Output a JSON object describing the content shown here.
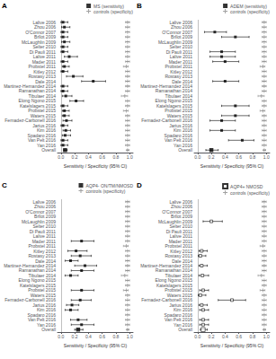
{
  "chart_data": [
    {
      "type": "forest",
      "title": "A",
      "categories": [
        "Lalive 2006",
        "Zhou 2006",
        "O'Connor 2007",
        "Brllot 2009",
        "McLaughlin 2009",
        "Selter 2010",
        "Di Pauli 2011",
        "Lalive 2011",
        "Mader 2011",
        "Probstel 2011",
        "Kitley 2012",
        "Rostasy 2013",
        "Dale 2014",
        "Martinez-Hernandez 2014",
        "Ramanathan 2014",
        "Tibulaer 2014",
        "Elong Ngono 2015",
        "Katelslagers 2015",
        "Probstel 2015",
        "Waters 2015",
        "Fernadez-Carbonell 2016",
        "Jarius 2016",
        "Kim 2016",
        "Spadaro 2016",
        "Van Pelt 2016",
        "Yan 2016",
        "Overall"
      ],
      "series": [
        {
          "name": "MS (sensitivity)",
          "color": "#000000",
          "marker": "square",
          "values": [
            0.03,
            0.05,
            0.03,
            0.03,
            0.05,
            0.03,
            0.03,
            0.12,
            0.03,
            0.05,
            0.03,
            0.18,
            0.47,
            0.03,
            0.03,
            0.07,
            0.22,
            0.03,
            0.05,
            0.05,
            0.08,
            0.03,
            0.07,
            0.06,
            0.03,
            0.03,
            0.06
          ],
          "error_low": [
            0.0,
            0.01,
            0.0,
            0.0,
            0.01,
            0.0,
            0.0,
            0.05,
            0.0,
            0.02,
            0.0,
            0.08,
            0.3,
            0.0,
            0.0,
            0.02,
            0.13,
            0.0,
            0.02,
            0.02,
            0.03,
            0.0,
            0.03,
            0.02,
            0.0,
            0.0,
            0.04
          ],
          "error_high": [
            0.1,
            0.13,
            0.1,
            0.1,
            0.13,
            0.1,
            0.1,
            0.24,
            0.1,
            0.12,
            0.1,
            0.32,
            0.65,
            0.1,
            0.1,
            0.16,
            0.33,
            0.1,
            0.12,
            0.12,
            0.16,
            0.1,
            0.14,
            0.14,
            0.1,
            0.1,
            0.09
          ]
        },
        {
          "name": "controls (specificity)",
          "color": "#888888",
          "marker": "plus",
          "values": [
            0.97,
            0.97,
            0.97,
            0.97,
            0.97,
            0.97,
            0.97,
            0.97,
            0.97,
            0.95,
            0.97,
            0.97,
            0.97,
            0.97,
            0.97,
            0.93,
            0.97,
            0.97,
            0.95,
            0.97,
            0.97,
            0.97,
            0.97,
            0.97,
            0.97,
            0.97,
            0.97
          ],
          "error_low": [
            0.94,
            0.94,
            0.94,
            0.94,
            0.94,
            0.94,
            0.94,
            0.94,
            0.94,
            0.91,
            0.94,
            0.94,
            0.94,
            0.94,
            0.94,
            0.88,
            0.94,
            0.94,
            0.91,
            0.94,
            0.94,
            0.94,
            0.94,
            0.94,
            0.94,
            0.94,
            0.96
          ],
          "error_high": [
            1.0,
            1.0,
            1.0,
            1.0,
            1.0,
            1.0,
            1.0,
            1.0,
            1.0,
            0.98,
            1.0,
            1.0,
            1.0,
            1.0,
            1.0,
            0.97,
            1.0,
            1.0,
            0.98,
            1.0,
            1.0,
            1.0,
            1.0,
            1.0,
            1.0,
            1.0,
            0.99
          ]
        }
      ],
      "xlabel": "Sensitivity / Specificity (95% CI)",
      "xlim": [
        -0.05,
        1.05
      ],
      "xticks": [
        {
          "value": 0,
          "label": "0.0"
        },
        0.2,
        0.4,
        0.6,
        0.8,
        {
          "value": 1,
          "label": "1.0"
        }
      ],
      "reference_lines": [
        {
          "x": 0,
          "line_style": "dotted"
        }
      ],
      "legend": "upper right",
      "grid": false
    },
    {
      "type": "forest",
      "title": "B",
      "categories": [
        "Lalive 2006",
        "Zhou 2006",
        "O'Connor 2007",
        "Brllot 2009",
        "McLaughlin 2009",
        "Selter 2010",
        "Di Pauli 2011",
        "Lalive 2011",
        "Mader 2011",
        "Probstel 2011",
        "Kitley 2012",
        "Rostasy 2013",
        "Dale 2014",
        "Martinez-Hernandez 2014",
        "Ramanathan 2014",
        "Tibulaer 2014",
        "Elong Ngono 2015",
        "Katelslagers 2015",
        "Probstel 2015",
        "Waters 2015",
        "Fernadez-Carbonell 2016",
        "Jarius 2016",
        "Kim 2016",
        "Spadaro 2016",
        "Van Pelt 2016",
        "Yan 2016",
        "Overall"
      ],
      "series": [
        {
          "name": "ADEM (sensitivity)",
          "color": "#000000",
          "marker": "square",
          "values": [
            null,
            null,
            0.25,
            0.55,
            null,
            null,
            0.35,
            0.35,
            0.4,
            null,
            null,
            null,
            0.4,
            null,
            null,
            null,
            null,
            0.55,
            null,
            0.55,
            0.35,
            null,
            0.35,
            null,
            0.65,
            null,
            0.2
          ],
          "error_low": [
            null,
            null,
            0.1,
            0.35,
            null,
            null,
            0.18,
            0.18,
            0.22,
            null,
            null,
            null,
            0.22,
            null,
            null,
            null,
            null,
            0.35,
            null,
            0.35,
            0.18,
            null,
            0.18,
            null,
            0.45,
            null,
            0.12
          ],
          "error_high": [
            null,
            null,
            0.42,
            0.75,
            null,
            null,
            0.55,
            0.55,
            0.6,
            null,
            null,
            null,
            0.6,
            null,
            null,
            null,
            null,
            0.75,
            null,
            0.75,
            0.55,
            null,
            0.55,
            null,
            0.82,
            null,
            0.3
          ]
        },
        {
          "name": "controls (specificity)",
          "color": "#888888",
          "marker": "plus",
          "values": [
            0.97,
            0.97,
            0.97,
            0.97,
            0.97,
            0.97,
            0.97,
            0.97,
            0.97,
            0.95,
            0.97,
            0.97,
            0.97,
            0.97,
            0.97,
            0.93,
            0.97,
            0.97,
            0.95,
            0.97,
            0.97,
            0.97,
            0.97,
            0.97,
            0.97,
            0.97,
            0.97
          ],
          "error_low": [
            0.94,
            0.94,
            0.94,
            0.94,
            0.94,
            0.94,
            0.94,
            0.94,
            0.94,
            0.91,
            0.94,
            0.94,
            0.94,
            0.94,
            0.94,
            0.88,
            0.94,
            0.94,
            0.91,
            0.94,
            0.94,
            0.94,
            0.94,
            0.94,
            0.94,
            0.94,
            0.96
          ],
          "error_high": [
            1.0,
            1.0,
            1.0,
            1.0,
            1.0,
            1.0,
            1.0,
            1.0,
            1.0,
            0.98,
            1.0,
            1.0,
            1.0,
            1.0,
            1.0,
            0.97,
            1.0,
            1.0,
            0.98,
            1.0,
            1.0,
            1.0,
            1.0,
            1.0,
            1.0,
            1.0,
            0.99
          ]
        }
      ],
      "xlabel": "Sensitivity / Specificity (95% CI)",
      "xlim": [
        -0.05,
        1.05
      ],
      "xticks": [
        {
          "value": 0,
          "label": "0.0"
        },
        0.2,
        0.4,
        0.6,
        0.8,
        {
          "value": 1,
          "label": "1.0"
        }
      ],
      "reference_lines": [
        {
          "x": 0,
          "line_style": "dotted"
        }
      ],
      "legend": "upper right",
      "grid": false
    },
    {
      "type": "forest",
      "title": "C",
      "categories": [
        "Lalive 2006",
        "Zhou 2006",
        "O'Connor 2007",
        "Brllot 2009",
        "McLaughlin 2009",
        "Selter 2010",
        "Di Pauli 2011",
        "Lalive 2011",
        "Mader 2011",
        "Probstel 2011",
        "Kitley 2012",
        "Rostasy 2013",
        "Dale 2014",
        "Martinez-Hernandez 2014",
        "Ramanathan 2014",
        "Tibulaer 2014",
        "Elong Ngono 2015",
        "Katelslagers 2015",
        "Probstel 2015",
        "Waters 2015",
        "Fernadez-Carbonell 2016",
        "Jarius 2016",
        "Kim 2016",
        "Spadaro 2016",
        "Van Pelt 2016",
        "Yan 2016",
        "Overall"
      ],
      "series": [
        {
          "name": "AQP4- ON/TM/NMOSD",
          "color": "#000000",
          "marker": "square",
          "values": [
            null,
            null,
            null,
            null,
            null,
            null,
            null,
            null,
            0.3,
            null,
            0.22,
            0.28,
            0.14,
            0.35,
            0.3,
            0.14,
            null,
            null,
            0.3,
            null,
            0.28,
            0.16,
            0.14,
            null,
            0.25,
            0.3,
            0.25
          ],
          "error_low": [
            null,
            null,
            null,
            null,
            null,
            null,
            null,
            null,
            0.15,
            null,
            0.1,
            0.15,
            0.06,
            0.2,
            0.15,
            0.06,
            null,
            null,
            0.15,
            null,
            0.15,
            0.08,
            0.06,
            null,
            0.14,
            0.15,
            0.2
          ],
          "error_high": [
            null,
            null,
            null,
            null,
            null,
            null,
            null,
            null,
            0.48,
            null,
            0.38,
            0.44,
            0.25,
            0.52,
            0.48,
            0.25,
            null,
            null,
            0.48,
            null,
            0.44,
            0.26,
            0.25,
            null,
            0.38,
            0.48,
            0.32
          ]
        },
        {
          "name": "controls (specificity)",
          "color": "#888888",
          "marker": "plus",
          "values": [
            0.97,
            0.97,
            0.97,
            0.97,
            0.97,
            0.97,
            0.97,
            0.97,
            0.97,
            0.95,
            0.97,
            0.97,
            0.97,
            0.97,
            0.97,
            0.93,
            0.97,
            0.97,
            0.95,
            0.97,
            0.97,
            0.97,
            0.97,
            0.97,
            0.97,
            0.97,
            0.97
          ],
          "error_low": [
            0.94,
            0.94,
            0.94,
            0.94,
            0.94,
            0.94,
            0.94,
            0.94,
            0.94,
            0.91,
            0.94,
            0.94,
            0.94,
            0.94,
            0.94,
            0.88,
            0.94,
            0.94,
            0.91,
            0.94,
            0.94,
            0.94,
            0.94,
            0.94,
            0.94,
            0.94,
            0.96
          ],
          "error_high": [
            1.0,
            1.0,
            1.0,
            1.0,
            1.0,
            1.0,
            1.0,
            1.0,
            1.0,
            0.98,
            1.0,
            1.0,
            1.0,
            1.0,
            1.0,
            0.97,
            1.0,
            1.0,
            0.98,
            1.0,
            1.0,
            1.0,
            1.0,
            1.0,
            1.0,
            1.0,
            0.99
          ]
        }
      ],
      "xlabel": "Sensitivity / Specificity (95% CI)",
      "xlim": [
        -0.05,
        1.05
      ],
      "xticks": [
        {
          "value": 0,
          "label": "0.0"
        },
        0.2,
        0.4,
        0.6,
        0.8,
        {
          "value": 1,
          "label": "1.0"
        }
      ],
      "reference_lines": [
        {
          "x": 0,
          "line_style": "dotted"
        }
      ],
      "legend": "upper right",
      "grid": false
    },
    {
      "type": "forest",
      "title": "D",
      "categories": [
        "Lalive 2006",
        "Zhou 2006",
        "O'Connor 2007",
        "Brllot 2009",
        "McLaughlin 2009",
        "Selter 2010",
        "Di Pauli 2011",
        "Lalive 2011",
        "Mader 2011",
        "Probstel 2011",
        "Kitley 2012",
        "Rostasy 2013",
        "Dale 2014",
        "Martinez-Hernandez 2014",
        "Ramanathan 2014",
        "Tibulaer 2014",
        "Elong Ngono 2015",
        "Katelslagers 2015",
        "Probstel 2015",
        "Waters 2015",
        "Fernadez-Carbonell 2016",
        "Jarius 2016",
        "Kim 2016",
        "Spadaro 2016",
        "Van Pelt 2016",
        "Yan 2016",
        "Overall"
      ],
      "series": [
        {
          "name": "AQP4+ NMOSD",
          "color": "#000000",
          "marker": "open_square",
          "values": [
            null,
            null,
            null,
            null,
            0.2,
            null,
            null,
            null,
            null,
            null,
            0.06,
            0.04,
            null,
            0.06,
            null,
            0.07,
            null,
            null,
            0.08,
            0.04,
            0.5,
            0.06,
            0.08,
            null,
            0.08,
            0.08,
            0.08
          ],
          "error_low": [
            null,
            null,
            null,
            null,
            0.08,
            null,
            null,
            null,
            null,
            null,
            0.02,
            0.01,
            null,
            0.02,
            null,
            0.02,
            null,
            null,
            0.03,
            0.01,
            0.3,
            0.02,
            0.03,
            null,
            0.03,
            0.03,
            0.04
          ],
          "error_high": [
            null,
            null,
            null,
            null,
            0.36,
            null,
            null,
            null,
            null,
            null,
            0.14,
            0.12,
            null,
            0.14,
            null,
            0.16,
            null,
            null,
            0.16,
            0.12,
            0.7,
            0.14,
            0.16,
            null,
            0.16,
            0.16,
            0.14
          ]
        },
        {
          "name": "controls (specificity)",
          "color": "#888888",
          "marker": "plus",
          "values": [
            0.97,
            0.97,
            0.97,
            0.97,
            0.97,
            0.97,
            0.97,
            0.97,
            0.97,
            0.95,
            0.97,
            0.97,
            0.97,
            0.97,
            0.97,
            0.93,
            0.97,
            0.97,
            0.95,
            0.97,
            0.97,
            0.97,
            0.97,
            0.97,
            0.97,
            0.97,
            0.97
          ],
          "error_low": [
            0.94,
            0.94,
            0.94,
            0.94,
            0.94,
            0.94,
            0.94,
            0.94,
            0.94,
            0.91,
            0.94,
            0.94,
            0.94,
            0.94,
            0.94,
            0.88,
            0.94,
            0.94,
            0.91,
            0.94,
            0.94,
            0.94,
            0.94,
            0.94,
            0.94,
            0.94,
            0.96
          ],
          "error_high": [
            1.0,
            1.0,
            1.0,
            1.0,
            1.0,
            1.0,
            1.0,
            1.0,
            1.0,
            0.98,
            1.0,
            1.0,
            1.0,
            1.0,
            1.0,
            0.97,
            1.0,
            1.0,
            0.98,
            1.0,
            1.0,
            1.0,
            1.0,
            1.0,
            1.0,
            1.0,
            0.99
          ]
        }
      ],
      "xlabel": "Sensitivity / Specificity (95% CI)",
      "xlim": [
        -0.05,
        1.05
      ],
      "xticks": [
        {
          "value": 0,
          "label": "0.0"
        },
        0.2,
        0.4,
        0.6,
        0.8,
        {
          "value": 1,
          "label": "1.0"
        }
      ],
      "reference_lines": [
        {
          "x": 0,
          "line_style": "dotted"
        }
      ],
      "legend": "upper right",
      "grid": false
    }
  ]
}
